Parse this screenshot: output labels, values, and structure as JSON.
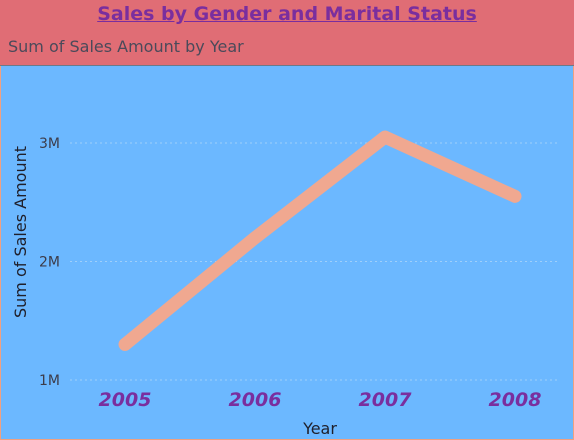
{
  "header": {
    "title": "Sales by Gender and Marital Status",
    "subtitle": "Sum of Sales Amount by Year"
  },
  "colors": {
    "background": "#6cb8ff",
    "header_bg": "#e06d75",
    "title": "#7a2e9e",
    "line": "#f0a890",
    "gridline": "#9fcffa"
  },
  "chart_data": {
    "type": "line",
    "title": "Sum of Sales Amount by Year",
    "xlabel": "Year",
    "ylabel": "Sum of Sales Amount",
    "categories": [
      "2005",
      "2006",
      "2007",
      "2008"
    ],
    "series": [
      {
        "values": [
          1300000,
          2200000,
          3050000,
          2550000
        ]
      }
    ],
    "yticks": [
      {
        "value": 1000000,
        "label": "1M"
      },
      {
        "value": 2000000,
        "label": "2M"
      },
      {
        "value": 3000000,
        "label": "3M"
      }
    ],
    "ylim": [
      1000000,
      3000000
    ],
    "grid": true,
    "legend": "none"
  }
}
